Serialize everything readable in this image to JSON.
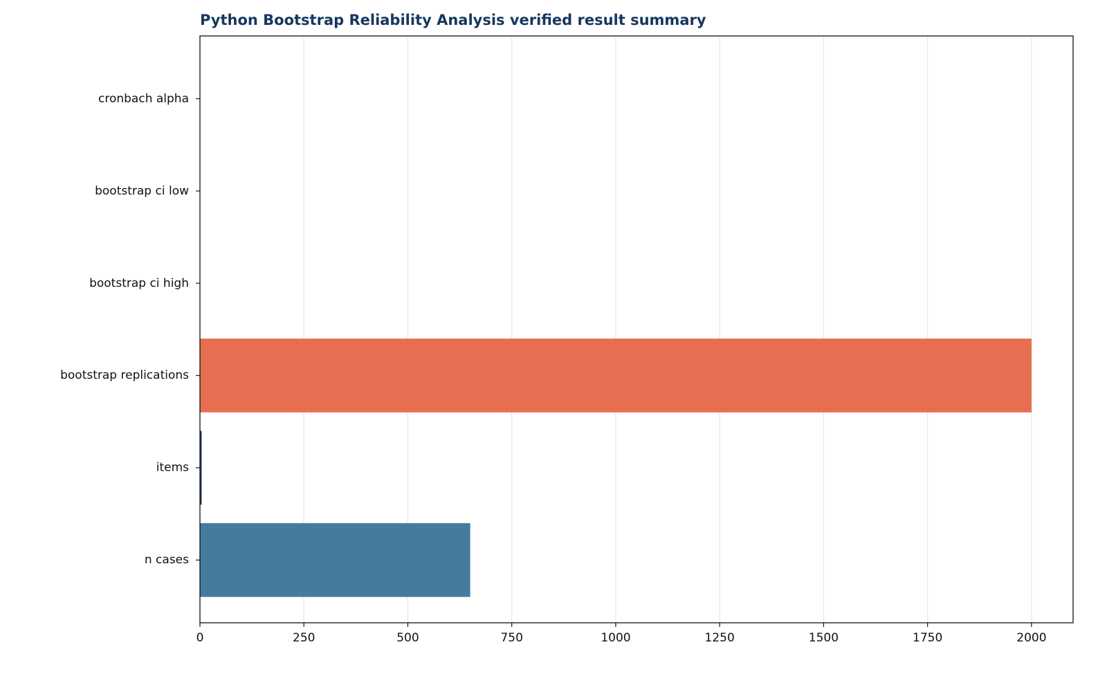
{
  "chart_data": {
    "type": "barh",
    "title": "Python Bootstrap Reliability Analysis verified result summary",
    "categories": [
      "cronbach alpha",
      "bootstrap ci low",
      "bootstrap ci high",
      "bootstrap replications",
      "items",
      "n cases"
    ],
    "values": [
      0.82,
      0.79,
      0.85,
      2000,
      4,
      650
    ],
    "colors": [
      "#2a9d8f",
      "#8ab17d",
      "#e9c46a",
      "#e76f51",
      "#1d3557",
      "#457b9d"
    ],
    "xlim": [
      0,
      2100
    ],
    "xticks": [
      0,
      250,
      500,
      750,
      1000,
      1250,
      1500,
      1750,
      2000
    ],
    "grid": true
  }
}
